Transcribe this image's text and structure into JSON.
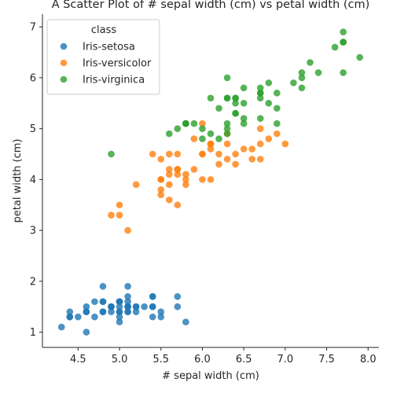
{
  "chart_data": {
    "type": "scatter",
    "title": "A Scatter Plot of # sepal width (cm) vs petal width (cm)",
    "xlabel": "# sepal width (cm)",
    "ylabel": "petal width (cm)",
    "xlim": [
      4.07,
      8.13
    ],
    "ylim": [
      0.7,
      7.25
    ],
    "xticks": [
      "4.5",
      "5.0",
      "5.5",
      "6.0",
      "6.5",
      "7.0",
      "7.5",
      "8.0"
    ],
    "yticks": [
      "1",
      "2",
      "3",
      "4",
      "5",
      "6",
      "7"
    ],
    "xtick_values": [
      4.5,
      5.0,
      5.5,
      6.0,
      6.5,
      7.0,
      7.5,
      8.0
    ],
    "ytick_values": [
      1,
      2,
      3,
      4,
      5,
      6,
      7
    ],
    "grid": false,
    "legend": {
      "title": "class",
      "placement": "top-left"
    },
    "series": [
      {
        "name": "Iris-setosa",
        "color": "#1f77b4",
        "points": [
          [
            5.1,
            1.4
          ],
          [
            4.9,
            1.4
          ],
          [
            4.7,
            1.3
          ],
          [
            4.6,
            1.5
          ],
          [
            5.0,
            1.4
          ],
          [
            5.4,
            1.7
          ],
          [
            4.6,
            1.4
          ],
          [
            5.0,
            1.5
          ],
          [
            4.4,
            1.4
          ],
          [
            4.9,
            1.5
          ],
          [
            5.4,
            1.5
          ],
          [
            4.8,
            1.6
          ],
          [
            4.8,
            1.4
          ],
          [
            4.3,
            1.1
          ],
          [
            5.8,
            1.2
          ],
          [
            5.7,
            1.5
          ],
          [
            5.4,
            1.3
          ],
          [
            5.1,
            1.4
          ],
          [
            5.7,
            1.7
          ],
          [
            5.1,
            1.5
          ],
          [
            5.4,
            1.7
          ],
          [
            5.1,
            1.5
          ],
          [
            4.6,
            1.0
          ],
          [
            5.1,
            1.7
          ],
          [
            4.8,
            1.9
          ],
          [
            5.0,
            1.6
          ],
          [
            5.0,
            1.6
          ],
          [
            5.2,
            1.5
          ],
          [
            5.2,
            1.4
          ],
          [
            4.7,
            1.6
          ],
          [
            4.8,
            1.6
          ],
          [
            5.4,
            1.5
          ],
          [
            5.2,
            1.5
          ],
          [
            5.5,
            1.4
          ],
          [
            4.9,
            1.5
          ],
          [
            5.0,
            1.2
          ],
          [
            5.5,
            1.3
          ],
          [
            4.9,
            1.5
          ],
          [
            4.4,
            1.3
          ],
          [
            5.1,
            1.5
          ],
          [
            5.0,
            1.3
          ],
          [
            4.5,
            1.3
          ],
          [
            4.4,
            1.3
          ],
          [
            5.0,
            1.6
          ],
          [
            5.1,
            1.9
          ],
          [
            4.8,
            1.4
          ],
          [
            5.1,
            1.6
          ],
          [
            4.6,
            1.4
          ],
          [
            5.3,
            1.5
          ],
          [
            5.0,
            1.4
          ]
        ]
      },
      {
        "name": "Iris-versicolor",
        "color": "#ff7f0e",
        "points": [
          [
            7.0,
            4.7
          ],
          [
            6.4,
            4.5
          ],
          [
            6.9,
            4.9
          ],
          [
            5.5,
            4.0
          ],
          [
            6.5,
            4.6
          ],
          [
            5.7,
            4.5
          ],
          [
            6.3,
            4.7
          ],
          [
            4.9,
            3.3
          ],
          [
            6.6,
            4.6
          ],
          [
            5.2,
            3.9
          ],
          [
            5.0,
            3.5
          ],
          [
            5.9,
            4.2
          ],
          [
            6.0,
            4.0
          ],
          [
            6.1,
            4.7
          ],
          [
            5.6,
            3.6
          ],
          [
            6.7,
            4.4
          ],
          [
            5.6,
            4.5
          ],
          [
            5.8,
            4.1
          ],
          [
            6.2,
            4.5
          ],
          [
            5.6,
            3.9
          ],
          [
            5.9,
            4.8
          ],
          [
            6.1,
            4.0
          ],
          [
            6.3,
            4.9
          ],
          [
            6.1,
            4.7
          ],
          [
            6.4,
            4.3
          ],
          [
            6.6,
            4.4
          ],
          [
            6.8,
            4.8
          ],
          [
            6.7,
            5.0
          ],
          [
            6.0,
            4.5
          ],
          [
            5.7,
            3.5
          ],
          [
            5.5,
            3.8
          ],
          [
            5.5,
            3.7
          ],
          [
            5.8,
            3.9
          ],
          [
            6.0,
            5.1
          ],
          [
            5.4,
            4.5
          ],
          [
            6.0,
            4.5
          ],
          [
            6.7,
            4.7
          ],
          [
            6.3,
            4.4
          ],
          [
            5.6,
            4.1
          ],
          [
            5.5,
            4.0
          ],
          [
            5.5,
            4.4
          ],
          [
            6.1,
            4.6
          ],
          [
            5.8,
            4.0
          ],
          [
            5.0,
            3.3
          ],
          [
            5.6,
            4.2
          ],
          [
            5.7,
            4.2
          ],
          [
            5.7,
            4.2
          ],
          [
            6.2,
            4.3
          ],
          [
            5.1,
            3.0
          ],
          [
            5.7,
            4.1
          ]
        ]
      },
      {
        "name": "Iris-virginica",
        "color": "#2ca02c",
        "points": [
          [
            6.3,
            6.0
          ],
          [
            5.8,
            5.1
          ],
          [
            7.1,
            5.9
          ],
          [
            6.3,
            5.6
          ],
          [
            6.5,
            5.8
          ],
          [
            7.6,
            6.6
          ],
          [
            4.9,
            4.5
          ],
          [
            7.3,
            6.3
          ],
          [
            6.7,
            5.8
          ],
          [
            7.2,
            6.1
          ],
          [
            6.5,
            5.1
          ],
          [
            6.4,
            5.3
          ],
          [
            6.8,
            5.5
          ],
          [
            5.7,
            5.0
          ],
          [
            5.8,
            5.1
          ],
          [
            6.4,
            5.3
          ],
          [
            6.5,
            5.5
          ],
          [
            7.7,
            6.7
          ],
          [
            7.7,
            6.9
          ],
          [
            6.0,
            5.0
          ],
          [
            6.9,
            5.7
          ],
          [
            5.6,
            4.9
          ],
          [
            7.7,
            6.7
          ],
          [
            6.3,
            4.9
          ],
          [
            6.7,
            5.7
          ],
          [
            7.2,
            6.0
          ],
          [
            6.2,
            4.8
          ],
          [
            6.1,
            4.9
          ],
          [
            6.4,
            5.6
          ],
          [
            7.2,
            5.8
          ],
          [
            7.4,
            6.1
          ],
          [
            7.9,
            6.4
          ],
          [
            6.4,
            5.6
          ],
          [
            6.3,
            5.1
          ],
          [
            6.1,
            5.6
          ],
          [
            7.7,
            6.1
          ],
          [
            6.3,
            5.6
          ],
          [
            6.4,
            5.5
          ],
          [
            6.0,
            4.8
          ],
          [
            6.9,
            5.4
          ],
          [
            6.7,
            5.6
          ],
          [
            6.9,
            5.1
          ],
          [
            5.8,
            5.1
          ],
          [
            6.8,
            5.9
          ],
          [
            6.7,
            5.7
          ],
          [
            6.7,
            5.2
          ],
          [
            6.3,
            5.0
          ],
          [
            6.5,
            5.2
          ],
          [
            6.2,
            5.4
          ],
          [
            5.9,
            5.1
          ]
        ]
      }
    ]
  }
}
